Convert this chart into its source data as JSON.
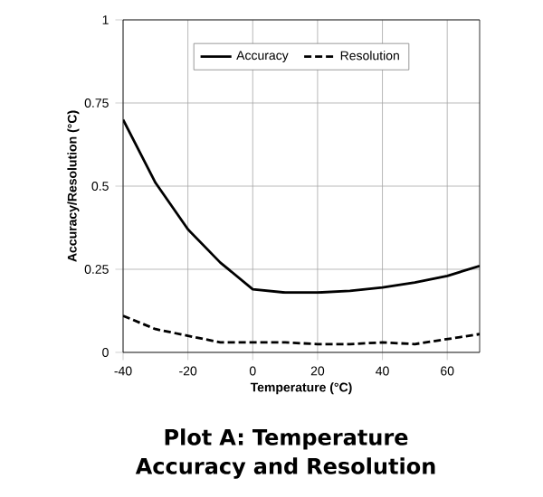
{
  "chart_data": {
    "type": "line",
    "title": "Plot A: Temperature Accuracy and Resolution",
    "xlabel": "Temperature  (°C)",
    "ylabel": "Accuracy/Resolution  (°C)",
    "x": [
      -40,
      -30,
      -20,
      -10,
      0,
      10,
      20,
      30,
      40,
      50,
      60,
      70
    ],
    "series": [
      {
        "name": "Accuracy",
        "color": "#000000",
        "line_style": "solid",
        "values": [
          0.7,
          0.51,
          0.37,
          0.27,
          0.19,
          0.18,
          0.18,
          0.185,
          0.195,
          0.21,
          0.23,
          0.26
        ]
      },
      {
        "name": "Resolution",
        "color": "#000000",
        "line_style": "dashed",
        "values": [
          0.11,
          0.07,
          0.05,
          0.03,
          0.03,
          0.03,
          0.025,
          0.025,
          0.03,
          0.025,
          0.04,
          0.055
        ]
      }
    ],
    "xlim": [
      -40,
      70
    ],
    "xticks": [
      -40,
      -20,
      0,
      20,
      40,
      60
    ],
    "ylim": [
      0,
      1
    ],
    "yticks": [
      0,
      0.25,
      0.5,
      0.75,
      1
    ],
    "grid": true,
    "legend": "top",
    "marker": "none"
  }
}
